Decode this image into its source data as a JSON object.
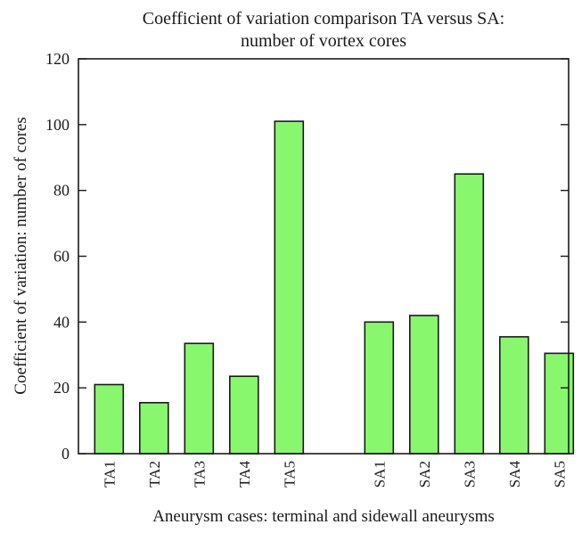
{
  "chart_data": {
    "type": "bar",
    "title_line1": "Coefficient of variation comparison TA versus SA:",
    "title_line2": "number of vortex cores",
    "xlabel": "Aneurysm cases: terminal and sidewall aneurysms",
    "ylabel": "Coefficient of variation: number of cores",
    "ylim": [
      0,
      120
    ],
    "yticks": [
      0,
      20,
      40,
      60,
      80,
      100,
      120
    ],
    "categories": [
      "TA1",
      "TA2",
      "TA3",
      "TA4",
      "TA5",
      "",
      "SA1",
      "SA2",
      "SA3",
      "SA4",
      "SA5"
    ],
    "values": [
      21,
      15.5,
      33.5,
      23.5,
      101,
      0,
      40,
      42,
      85,
      35.5,
      30.5
    ],
    "bar_color": "#88f76e",
    "grid": false,
    "legend": "none"
  }
}
